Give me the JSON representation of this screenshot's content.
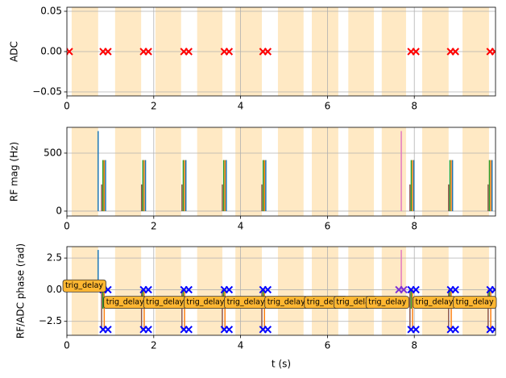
{
  "chart_data": [
    {
      "type": "scatter",
      "ylabel": "ADC",
      "xlim": [
        0,
        9.87
      ],
      "xticks": [
        0,
        2,
        4,
        6,
        8
      ],
      "ylim": [
        -0.055,
        0.055
      ],
      "yticks": [
        {
          "value": -0.05,
          "label": "−0.05"
        },
        {
          "value": 0,
          "label": "0.00"
        },
        {
          "value": 0.05,
          "label": "0.05"
        }
      ],
      "grid": true,
      "span_color": "#ffe9c4",
      "spans": [
        [
          0.11,
          0.72
        ],
        [
          1.11,
          1.71
        ],
        [
          2.04,
          2.63
        ],
        [
          3.0,
          3.58
        ],
        [
          3.88,
          4.49
        ],
        [
          4.86,
          5.45
        ],
        [
          5.64,
          6.25
        ],
        [
          6.48,
          7.07
        ],
        [
          7.25,
          7.81
        ],
        [
          8.18,
          8.79
        ],
        [
          9.11,
          9.72
        ]
      ],
      "points": {
        "x": [
          0,
          0.89,
          1.82,
          2.75,
          3.68,
          4.57,
          7.98,
          8.89,
          9.8
        ],
        "values": [
          0,
          0,
          0,
          0,
          0,
          0,
          0,
          0,
          0
        ],
        "colors": [
          "#ff0000",
          "#ff0000",
          "#ff0000",
          "#ff0000",
          "#ff0000",
          "#ff0000",
          "#ff0000",
          "#ff0000",
          "#ff0000"
        ]
      }
    },
    {
      "type": "vlines",
      "ylabel": "RF mag (Hz)",
      "xlim": [
        0,
        9.87
      ],
      "xticks": [
        0,
        2,
        4,
        6,
        8
      ],
      "ylim": [
        -42,
        722
      ],
      "yticks": [
        0,
        500
      ],
      "grid": true,
      "span_color": "#ffe9c4",
      "spans": [
        [
          0.11,
          0.72
        ],
        [
          1.11,
          1.71
        ],
        [
          2.04,
          2.63
        ],
        [
          3.0,
          3.58
        ],
        [
          3.88,
          4.49
        ],
        [
          4.86,
          5.45
        ],
        [
          5.64,
          6.25
        ],
        [
          6.48,
          7.07
        ],
        [
          7.25,
          7.81
        ],
        [
          8.18,
          8.79
        ],
        [
          9.11,
          9.72
        ]
      ],
      "lines": {
        "x": [
          0.72,
          7.7,
          0.8,
          0.83,
          0.86,
          0.89,
          1.72,
          1.75,
          1.78,
          1.81,
          2.65,
          2.68,
          2.71,
          2.74,
          3.58,
          3.61,
          3.64,
          3.67,
          4.49,
          4.52,
          4.55,
          4.58,
          7.9,
          7.93,
          7.96,
          7.99,
          8.79,
          8.82,
          8.85,
          8.88,
          9.7,
          9.73,
          9.76,
          9.79
        ],
        "values": [
          690,
          690,
          230,
          440,
          440,
          440,
          230,
          440,
          440,
          440,
          230,
          440,
          440,
          440,
          230,
          440,
          440,
          440,
          230,
          440,
          440,
          440,
          230,
          440,
          440,
          440,
          230,
          440,
          440,
          440,
          230,
          440,
          440,
          440
        ],
        "colors": [
          "#1f77b4",
          "#e377c2",
          "#8c564b",
          "#2ca02c",
          "#ff7f0e",
          "#1f77b4",
          "#8c564b",
          "#2ca02c",
          "#ff7f0e",
          "#1f77b4",
          "#8c564b",
          "#2ca02c",
          "#ff7f0e",
          "#1f77b4",
          "#8c564b",
          "#2ca02c",
          "#ff7f0e",
          "#1f77b4",
          "#8c564b",
          "#2ca02c",
          "#ff7f0e",
          "#1f77b4",
          "#8c564b",
          "#2ca02c",
          "#ff7f0e",
          "#1f77b4",
          "#8c564b",
          "#2ca02c",
          "#ff7f0e",
          "#1f77b4",
          "#8c564b",
          "#2ca02c",
          "#ff7f0e",
          "#1f77b4"
        ]
      }
    },
    {
      "type": "vlines",
      "ylabel": "RF/ADC phase (rad)",
      "xlabel": "t (s)",
      "xlim": [
        0,
        9.87
      ],
      "xticks": [
        0,
        2,
        4,
        6,
        8
      ],
      "ylim": [
        -3.6,
        3.4
      ],
      "yticks": [
        {
          "value": -2.5,
          "label": "−2.5"
        },
        {
          "value": 0,
          "label": "0.0"
        },
        2.5
      ],
      "grid": true,
      "span_color": "#ffe9c4",
      "spans": [
        [
          0.11,
          0.72
        ],
        [
          1.11,
          1.71
        ],
        [
          2.04,
          2.63
        ],
        [
          3.0,
          3.58
        ],
        [
          3.88,
          4.49
        ],
        [
          4.86,
          5.45
        ],
        [
          5.64,
          6.25
        ],
        [
          6.48,
          7.07
        ],
        [
          7.25,
          7.81
        ],
        [
          8.18,
          8.79
        ],
        [
          9.11,
          9.72
        ]
      ],
      "lines": {
        "x": [
          0.72,
          7.7,
          0.8,
          0.83,
          0.86,
          1.72,
          1.75,
          1.78,
          2.65,
          2.68,
          2.71,
          3.58,
          3.61,
          3.64,
          4.49,
          4.52,
          4.55,
          7.9,
          7.93,
          7.96,
          8.79,
          8.82,
          8.85,
          9.7,
          9.73,
          9.76
        ],
        "values": [
          3.14,
          3.14,
          -3.14,
          -1.5,
          -3.14,
          -3.14,
          -1.5,
          -3.14,
          -3.14,
          -1.5,
          -3.14,
          -3.14,
          -1.5,
          -3.14,
          -3.14,
          -1.5,
          -3.14,
          -3.14,
          -1.5,
          -3.14,
          -3.14,
          -1.5,
          -3.14,
          -3.14,
          -1.5,
          -3.14
        ],
        "colors": [
          "#1f77b4",
          "#e377c2",
          "#8c564b",
          "#2ca02c",
          "#ff7f0e",
          "#8c564b",
          "#2ca02c",
          "#ff7f0e",
          "#8c564b",
          "#2ca02c",
          "#ff7f0e",
          "#8c564b",
          "#2ca02c",
          "#ff7f0e",
          "#8c564b",
          "#2ca02c",
          "#ff7f0e",
          "#8c564b",
          "#2ca02c",
          "#ff7f0e",
          "#8c564b",
          "#2ca02c",
          "#ff7f0e",
          "#8c564b",
          "#2ca02c",
          "#ff7f0e"
        ]
      },
      "points": {
        "x": [
          0.89,
          1.82,
          2.75,
          3.68,
          4.57,
          7.98,
          8.89,
          9.8,
          0.89,
          1.82,
          2.75,
          3.68,
          4.57,
          7.98,
          8.89,
          9.8,
          7.7
        ],
        "values": [
          0,
          0,
          0,
          0,
          0,
          0,
          0,
          0,
          -3.14,
          -3.14,
          -3.14,
          -3.14,
          -3.14,
          -3.14,
          -3.14,
          -3.14,
          0
        ],
        "colors": [
          "#0000ff",
          "#0000ff",
          "#0000ff",
          "#0000ff",
          "#0000ff",
          "#0000ff",
          "#0000ff",
          "#0000ff",
          "#0000ff",
          "#0000ff",
          "#0000ff",
          "#0000ff",
          "#0000ff",
          "#0000ff",
          "#0000ff",
          "#0000ff",
          "#7b2fd6"
        ]
      },
      "annotations": [
        {
          "text": "trig_delay",
          "x": 0.4,
          "y": 0.3
        },
        {
          "text": "trig_delay",
          "x": 1.34,
          "y": -1.0
        },
        {
          "text": "trig_delay",
          "x": 2.26,
          "y": -1.0
        },
        {
          "text": "trig_delay",
          "x": 3.19,
          "y": -1.0
        },
        {
          "text": "trig_delay",
          "x": 4.12,
          "y": -1.0
        },
        {
          "text": "trig_delay",
          "x": 5.05,
          "y": -1.0
        },
        {
          "text": "trig_delay",
          "x": 5.96,
          "y": -1.0
        },
        {
          "text": "trig_delay",
          "x": 6.64,
          "y": -1.0
        },
        {
          "text": "trig_delay",
          "x": 7.38,
          "y": -1.0
        },
        {
          "text": "trig_delay",
          "x": 8.46,
          "y": -1.0
        },
        {
          "text": "trig_delay",
          "x": 9.39,
          "y": -1.0
        }
      ]
    }
  ]
}
